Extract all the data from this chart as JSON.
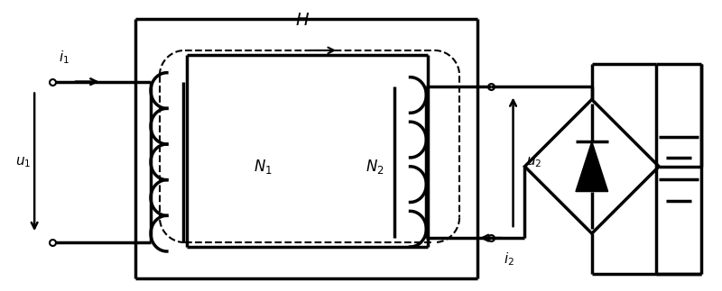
{
  "bg_color": "#ffffff",
  "lc": "#000000",
  "lw": 1.8,
  "lw2": 2.5,
  "figsize": [
    8.0,
    3.23
  ],
  "dpi": 100,
  "H_label": "$H$",
  "N1_label": "$N_1$",
  "N2_label": "$N_2$",
  "i1_label": "$i_1$",
  "u1_label": "$u_1$",
  "i2_label": "$i_2$",
  "u2_label": "$u_2$"
}
